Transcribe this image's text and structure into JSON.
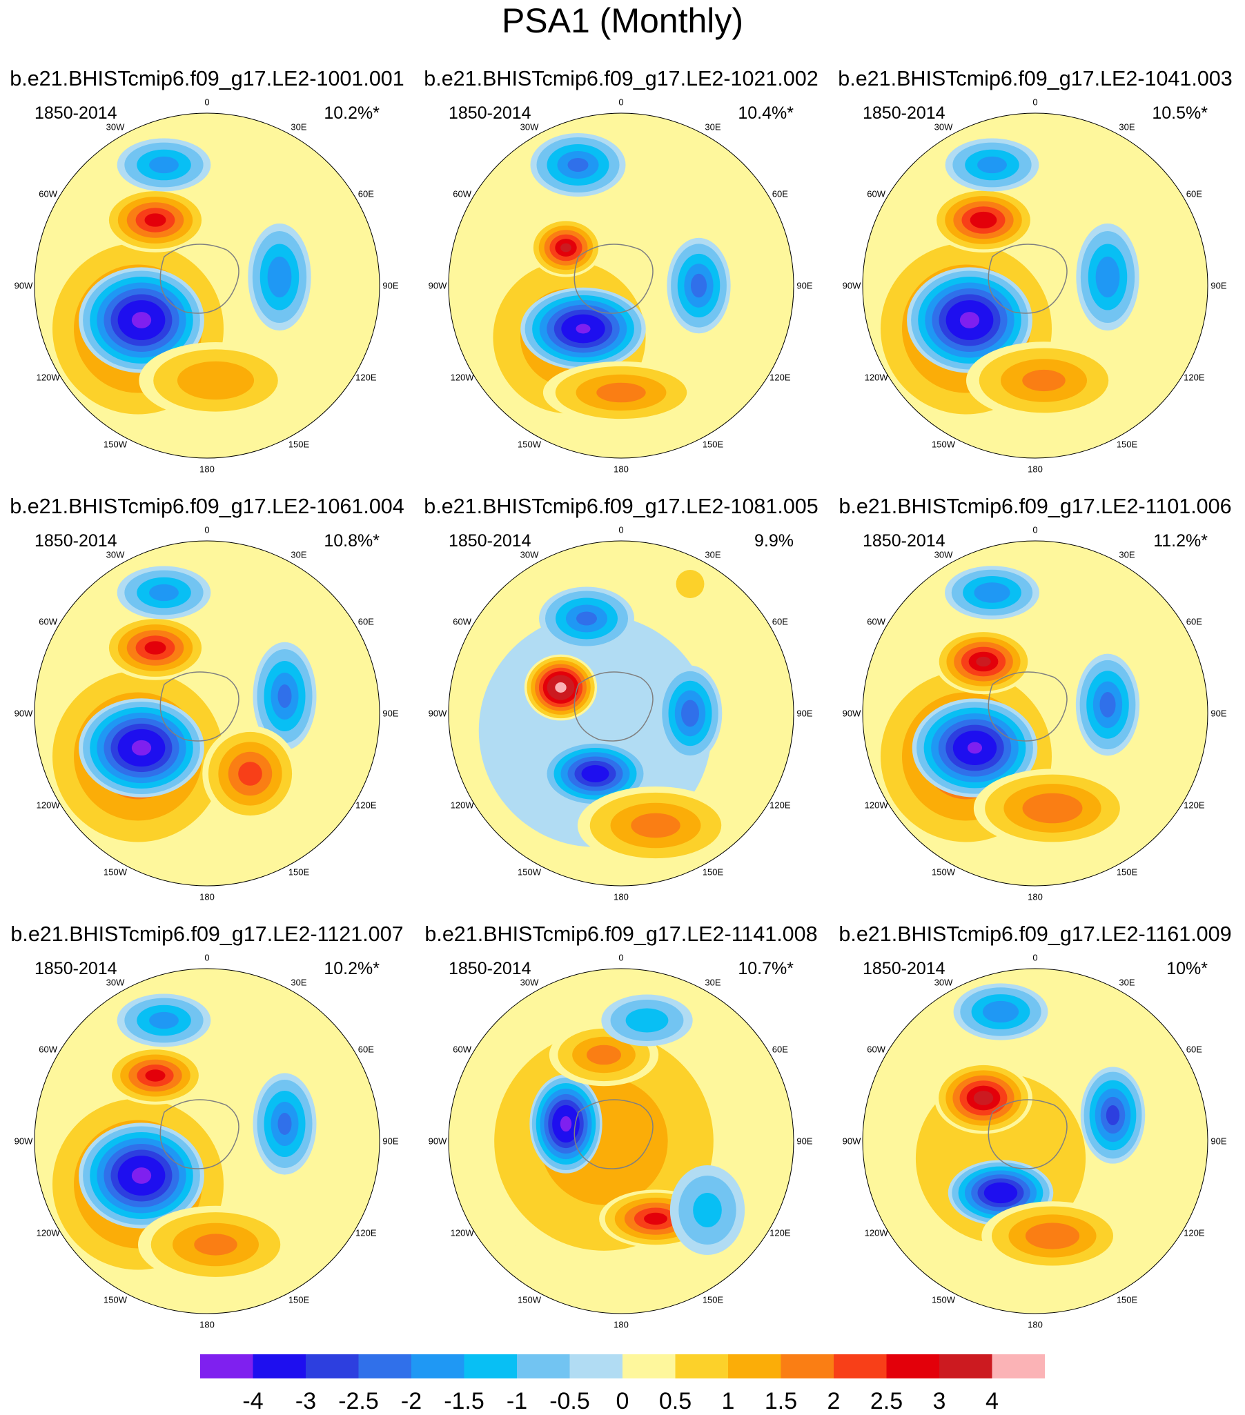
{
  "figure_title": "PSA1 (Monthly)",
  "chart_data": {
    "type": "heatmap",
    "title": "PSA1 (Monthly)",
    "projection": "south polar stereographic",
    "longitude_labels": [
      "0",
      "30E",
      "60E",
      "90E",
      "120E",
      "150E",
      "180",
      "150W",
      "120W",
      "90W",
      "60W",
      "30W"
    ],
    "colorbar": {
      "levels": [
        "-4",
        "-3",
        "-2.5",
        "-2",
        "-1.5",
        "-1",
        "-0.5",
        "0",
        "0.5",
        "1",
        "1.5",
        "2",
        "2.5",
        "3",
        "4"
      ],
      "colors": [
        "#7f20ef",
        "#1e0fef",
        "#2d3fdf",
        "#3070ea",
        "#1f98f4",
        "#08bff4",
        "#72c4f2",
        "#b1dcf3",
        "#fef79c",
        "#fcd12a",
        "#fbad08",
        "#fa7e14",
        "#f83f18",
        "#e3000a",
        "#cc1a20",
        "#fbb3b6"
      ]
    },
    "panels": [
      {
        "name": "b.e21.BHISTcmip6.f09_g17.LE2-1001.001",
        "period": "1850-2014",
        "explained_variance": "10.2%*"
      },
      {
        "name": "b.e21.BHISTcmip6.f09_g17.LE2-1021.002",
        "period": "1850-2014",
        "explained_variance": "10.4%*"
      },
      {
        "name": "b.e21.BHISTcmip6.f09_g17.LE2-1041.003",
        "period": "1850-2014",
        "explained_variance": "10.5%*"
      },
      {
        "name": "b.e21.BHISTcmip6.f09_g17.LE2-1061.004",
        "period": "1850-2014",
        "explained_variance": "10.8%*"
      },
      {
        "name": "b.e21.BHISTcmip6.f09_g17.LE2-1081.005",
        "period": "1850-2014",
        "explained_variance": "9.9%"
      },
      {
        "name": "b.e21.BHISTcmip6.f09_g17.LE2-1101.006",
        "period": "1850-2014",
        "explained_variance": "11.2%*"
      },
      {
        "name": "b.e21.BHISTcmip6.f09_g17.LE2-1121.007",
        "period": "1850-2014",
        "explained_variance": "10.2%*"
      },
      {
        "name": "b.e21.BHISTcmip6.f09_g17.LE2-1141.008",
        "period": "1850-2014",
        "explained_variance": "10.7%*"
      },
      {
        "name": "b.e21.BHISTcmip6.f09_g17.LE2-1161.009",
        "period": "1850-2014",
        "explained_variance": "10%*"
      }
    ]
  }
}
